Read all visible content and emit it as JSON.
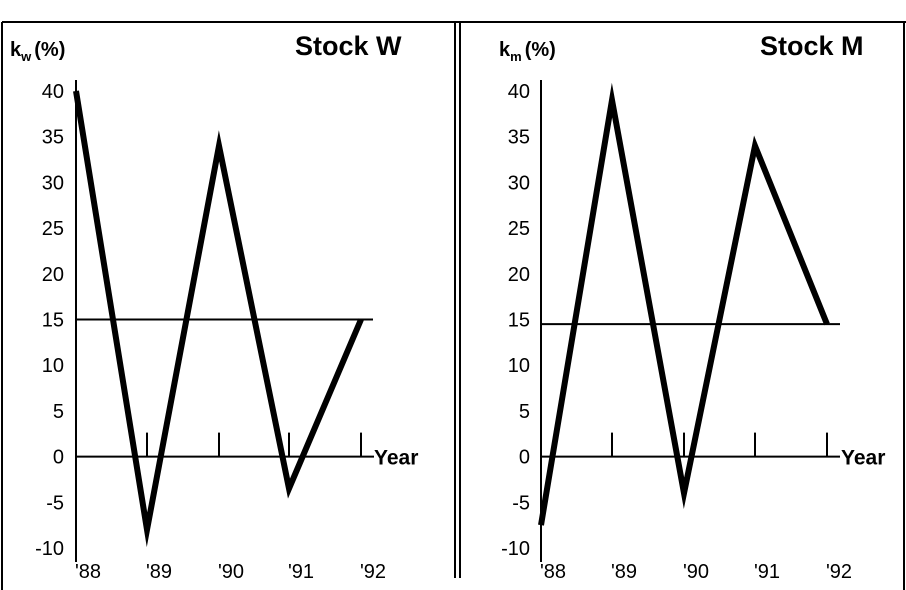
{
  "chart_data": [
    {
      "type": "line",
      "title": "Stock W",
      "ylabel_main": "k",
      "ylabel_sub": "w",
      "ylabel_unit": "(%)",
      "xlabel": "Year",
      "categories": [
        "'88",
        "'89",
        "'90",
        "'91",
        "'92"
      ],
      "series": [
        {
          "values": [
            40,
            -8,
            34,
            -3.5,
            15
          ]
        }
      ],
      "reference_line": 15,
      "ylim": [
        -10,
        40
      ],
      "yticks": [
        40,
        35,
        30,
        25,
        20,
        15,
        10,
        5,
        0,
        -5,
        -10
      ],
      "grid": false,
      "legend": "none"
    },
    {
      "type": "line",
      "title": "Stock M",
      "ylabel_main": "k",
      "ylabel_sub": "m",
      "ylabel_unit": "(%)",
      "xlabel": "Year",
      "categories": [
        "'88",
        "'89",
        "'90",
        "'91",
        "'92"
      ],
      "series": [
        {
          "values": [
            -7.5,
            39,
            -4,
            34,
            14.5
          ]
        }
      ],
      "reference_line": 14.5,
      "ylim": [
        -10,
        40
      ],
      "yticks": [
        40,
        35,
        30,
        25,
        20,
        15,
        10,
        5,
        0,
        -5,
        -10
      ],
      "grid": false,
      "legend": "none"
    }
  ]
}
